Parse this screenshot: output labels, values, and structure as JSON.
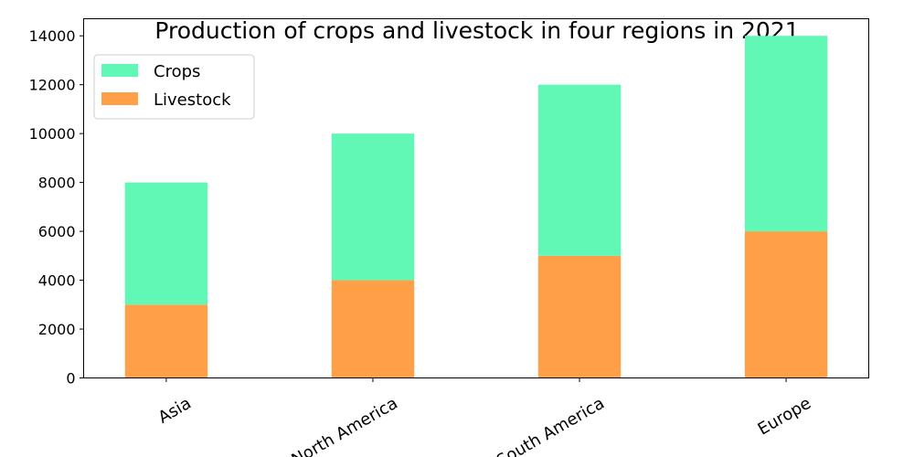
{
  "chart_data": {
    "type": "bar",
    "stacked": true,
    "title": "Production of crops and livestock in four regions in 2021",
    "xlabel": "",
    "ylabel": "",
    "categories": [
      "Asia",
      "North America",
      "South America",
      "Europe"
    ],
    "series": [
      {
        "name": "Livestock",
        "values": [
          3000,
          4000,
          5000,
          6000
        ],
        "color": "#ffa048"
      },
      {
        "name": "Crops",
        "values": [
          5000,
          6000,
          7000,
          8000
        ],
        "color": "#60f8b4"
      }
    ],
    "ylim": [
      0,
      14700
    ],
    "yticks": [
      0,
      2000,
      4000,
      6000,
      8000,
      10000,
      12000,
      14000
    ],
    "legend": {
      "position": "top-left",
      "order": [
        "Crops",
        "Livestock"
      ]
    },
    "grid": false
  }
}
